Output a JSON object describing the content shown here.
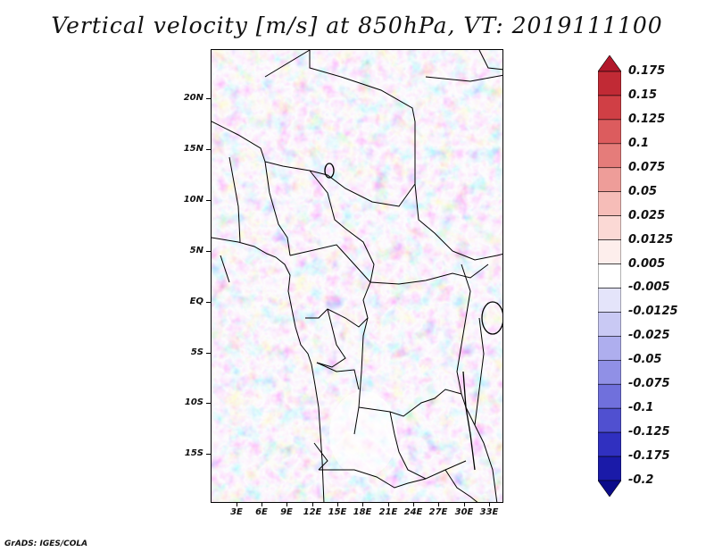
{
  "title": "Vertical velocity [m/s] at 850hPa, VT: 2019111100",
  "map": {
    "variable": "Vertical velocity",
    "units": "m/s",
    "level": "850hPa",
    "valid_time": "2019111100",
    "lat_labels": [
      "20N",
      "15N",
      "10N",
      "5N",
      "EQ",
      "5S",
      "10S",
      "15S"
    ],
    "lon_labels": [
      "3E",
      "6E",
      "9E",
      "12E",
      "15E",
      "18E",
      "21E",
      "24E",
      "27E",
      "30E",
      "33E"
    ]
  },
  "colorbar": {
    "levels": [
      "0.175",
      "0.15",
      "0.125",
      "0.1",
      "0.075",
      "0.05",
      "0.025",
      "0.0125",
      "0.005",
      "-0.005",
      "-0.0125",
      "-0.025",
      "-0.05",
      "-0.075",
      "-0.1",
      "-0.125",
      "-0.175",
      "-0.2"
    ],
    "colors": [
      "#b2182b",
      "#c12a35",
      "#d03f45",
      "#dc5c5e",
      "#e57c7a",
      "#ee9d99",
      "#f6bdb8",
      "#fbd9d5",
      "#fdeeec",
      "#ffffff",
      "#e4e4fa",
      "#c9c9f4",
      "#aeaeee",
      "#9090e6",
      "#7070dc",
      "#5050d0",
      "#3030c0",
      "#1a1aa8",
      "#0c0c8a"
    ]
  },
  "footer": "GrADS: IGES/COLA"
}
